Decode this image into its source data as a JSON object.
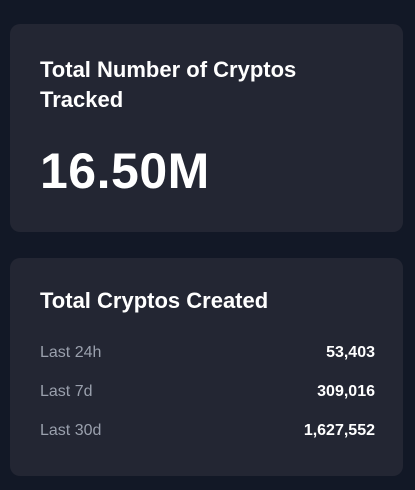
{
  "total_tracked": {
    "title": "Total Number of Cryptos Tracked",
    "value": "16.50M"
  },
  "created": {
    "title": "Total Cryptos Created",
    "rows": [
      {
        "label": "Last 24h",
        "value": "53,403"
      },
      {
        "label": "Last 7d",
        "value": "309,016"
      },
      {
        "label": "Last 30d",
        "value": "1,627,552"
      }
    ]
  },
  "colors": {
    "page_background": "#121826",
    "card_background": "#232633",
    "primary_text": "#ffffff",
    "secondary_text": "#9aa0ad"
  }
}
